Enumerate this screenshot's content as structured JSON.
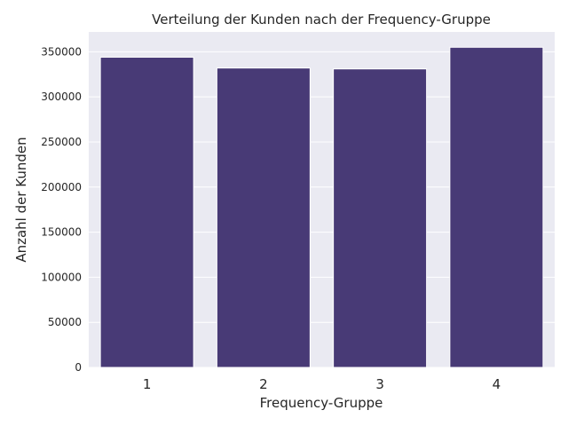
{
  "chart_data": {
    "type": "bar",
    "title": "Verteilung der Kunden nach der Frequency-Gruppe",
    "xlabel": "Frequency-Gruppe",
    "ylabel": "Anzahl der Kunden",
    "categories": [
      "1",
      "2",
      "3",
      "4"
    ],
    "values": [
      344000,
      332000,
      331000,
      355000
    ],
    "ylim": [
      0,
      372000
    ],
    "yticks": [
      0,
      50000,
      100000,
      150000,
      200000,
      250000,
      300000,
      350000
    ],
    "grid": true,
    "legend": "none",
    "colors": {
      "bar": "#483a76",
      "plot_bg": "#eaeaf2",
      "grid": "#ffffff",
      "text": "#262626"
    }
  }
}
